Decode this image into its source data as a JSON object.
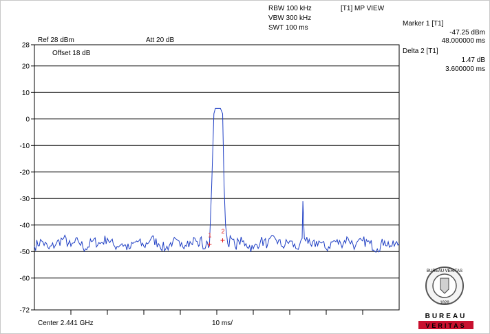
{
  "header": {
    "rbw": "RBW 100 kHz",
    "vbw": "VBW 300 kHz",
    "swt": "SWT 100 ms",
    "mode": "[T1] MP VIEW",
    "ref": "Ref 28 dBm",
    "att": "Att  20 dB",
    "offset": "Offset 18 dB"
  },
  "markers": {
    "marker1_title": "Marker 1 [T1]",
    "marker1_level": "-47.25 dBm",
    "marker1_time": "48.000000 ms",
    "delta2_title": "Delta 2 [T1]",
    "delta2_level": "1.47 dB",
    "delta2_time": "3.600000 ms",
    "marker1_label": "1",
    "delta2_label": "2"
  },
  "footer": {
    "center": "Center 2.441 GHz",
    "div": "10 ms/"
  },
  "logo": {
    "seal_text": "BUREAU VERITAS",
    "seal_year": "1828",
    "brand_line1": "BUREAU",
    "brand_line2": "VERITAS"
  },
  "colors": {
    "trace": "#1f3fc4",
    "marker": "#e02020",
    "grid": "#000000",
    "brand_red": "#c8102e"
  },
  "chart_data": {
    "type": "line",
    "title": "",
    "xlabel": "",
    "ylabel": "",
    "x_unit": "ms",
    "x_range": [
      0,
      100
    ],
    "ylim": [
      -72,
      28
    ],
    "y_ticks": [
      28,
      20,
      10,
      0,
      -10,
      -20,
      -30,
      -40,
      -50,
      -60,
      -72
    ],
    "grid": true,
    "legend": "none",
    "series": [
      {
        "x": [
          0,
          2,
          4,
          6,
          8,
          10,
          12,
          14,
          16,
          18,
          20,
          22,
          24,
          26,
          28,
          30,
          32,
          34,
          36,
          38,
          40,
          42,
          43,
          44,
          45,
          45.5,
          46,
          46.5,
          47,
          47.5,
          48,
          48.6,
          49.2,
          49.6,
          50,
          50.4,
          51,
          51.6,
          52,
          52.4,
          53,
          54,
          55,
          56,
          58,
          60,
          62,
          64,
          66,
          68,
          70,
          72,
          73,
          73.4,
          73.6,
          74,
          74.4,
          75,
          76,
          78,
          80,
          82,
          84,
          86,
          88,
          90,
          92,
          94,
          96,
          98,
          100
        ],
        "y": [
          -48,
          -46,
          -49,
          -47,
          -45,
          -48,
          -46,
          -49,
          -46,
          -47,
          -45,
          -48,
          -47,
          -49,
          -46,
          -48,
          -45,
          -47,
          -49,
          -46,
          -48,
          -46,
          -47,
          -45,
          -48,
          -45,
          -47,
          -49,
          -48,
          -47,
          -47.2,
          -25,
          2,
          4,
          4,
          4,
          4,
          2,
          -25,
          -40,
          -47,
          -45,
          -48,
          -46,
          -47,
          -49,
          -46,
          -47,
          -45,
          -48,
          -46,
          -49,
          -46,
          -45,
          -31,
          -45,
          -46,
          -47,
          -48,
          -46,
          -49,
          -46,
          -47,
          -45,
          -48,
          -46,
          -47,
          -49,
          -46,
          -48,
          -47
        ]
      }
    ],
    "markers": [
      {
        "label": "1",
        "x": 48.0,
        "y": -47.25
      },
      {
        "label": "2",
        "x": 51.6,
        "y": -45.78
      }
    ]
  }
}
